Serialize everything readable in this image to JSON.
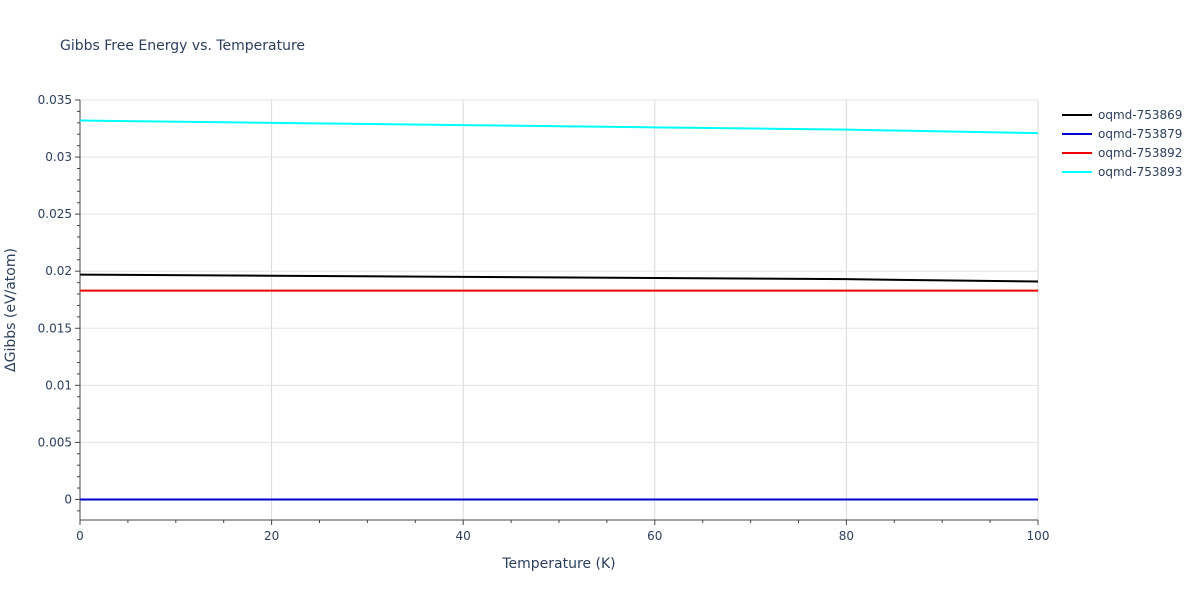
{
  "chart_data": {
    "type": "line",
    "title": "Gibbs Free Energy vs. Temperature",
    "xlabel": "Temperature (K)",
    "ylabel": "ΔGibbs (eV/atom)",
    "xlim": [
      0,
      100
    ],
    "ylim": [
      -0.0018,
      0.035
    ],
    "x_ticks": [
      0,
      20,
      40,
      60,
      80,
      100
    ],
    "x_tick_labels": [
      "0",
      "20",
      "40",
      "60",
      "80",
      "100"
    ],
    "y_ticks": [
      0,
      0.005,
      0.01,
      0.015,
      0.02,
      0.025,
      0.03,
      0.035
    ],
    "y_tick_labels": [
      "0",
      "0.005",
      "0.01",
      "0.015",
      "0.02",
      "0.025",
      "0.03",
      "0.035"
    ],
    "grid": true,
    "legend_position": "top-right",
    "x": [
      0,
      20,
      40,
      60,
      80,
      100
    ],
    "series": [
      {
        "name": "oqmd-753869",
        "color": "#000000",
        "values": [
          0.0197,
          0.0196,
          0.0195,
          0.0194,
          0.0193,
          0.0191
        ]
      },
      {
        "name": "oqmd-753879",
        "color": "#0000cc",
        "values": [
          0.0,
          0.0,
          0.0,
          0.0,
          0.0,
          0.0
        ]
      },
      {
        "name": "oqmd-753892",
        "color": "#ee0000",
        "values": [
          0.0183,
          0.0183,
          0.0183,
          0.0183,
          0.0183,
          0.0183
        ]
      },
      {
        "name": "oqmd-753893",
        "color": "#00ffff",
        "values": [
          0.0332,
          0.033,
          0.0328,
          0.0326,
          0.0324,
          0.0321
        ]
      }
    ]
  }
}
